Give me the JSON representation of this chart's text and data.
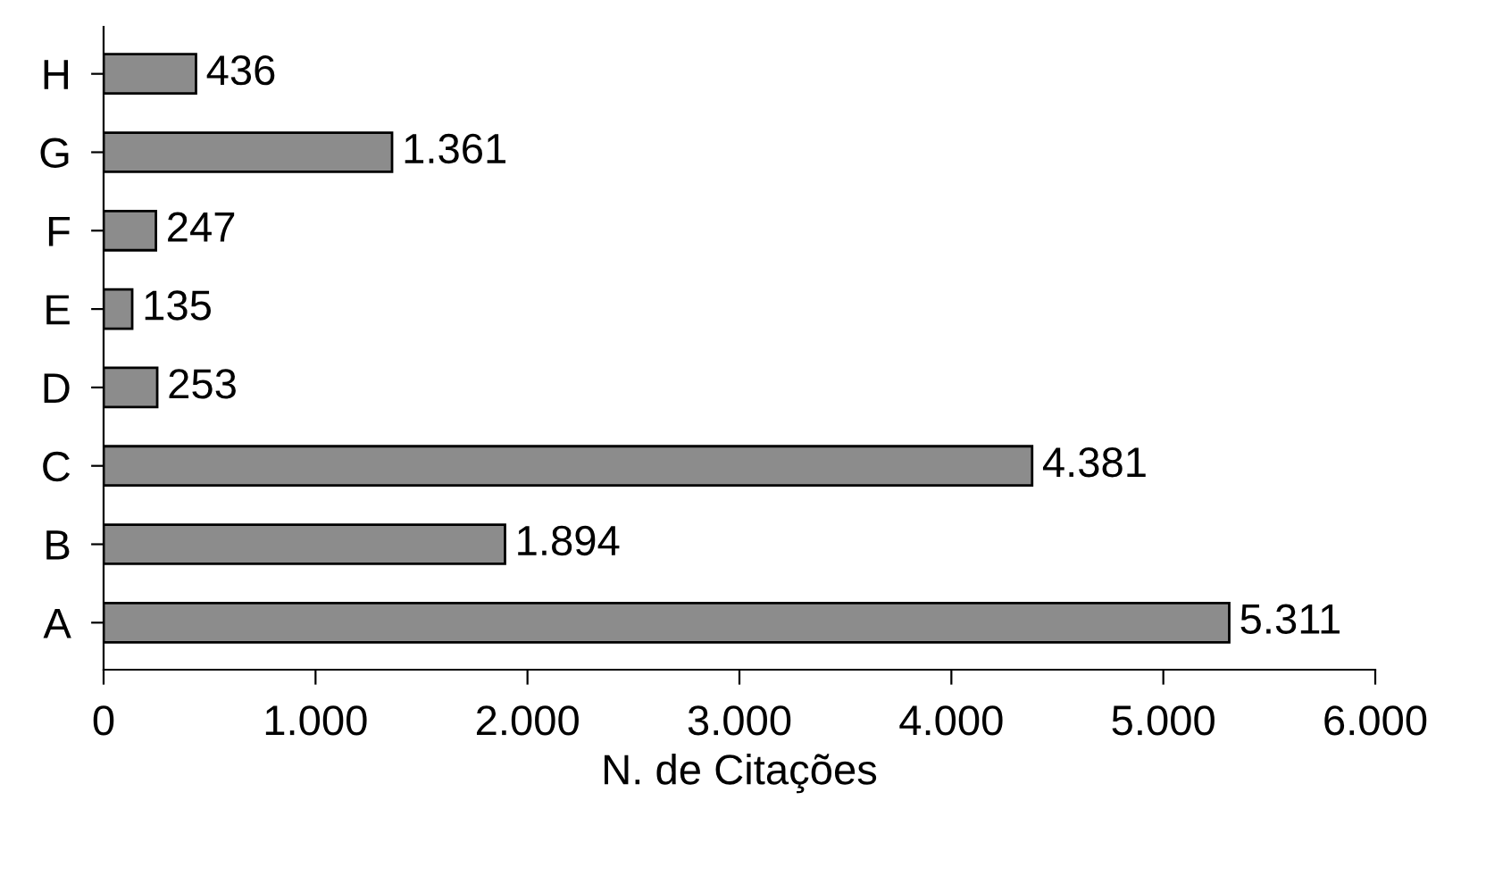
{
  "chart_data": {
    "type": "bar",
    "orientation": "horizontal",
    "xlabel": "N. de Citações",
    "categories": [
      "H",
      "G",
      "F",
      "E",
      "D",
      "C",
      "B",
      "A"
    ],
    "values": [
      436,
      1361,
      247,
      135,
      253,
      4381,
      1894,
      5311
    ],
    "value_labels": [
      "436",
      "1.361",
      "247",
      "135",
      "253",
      "4.381",
      "1.894",
      "5.311"
    ],
    "color": "#8c8c8c",
    "xlim": [
      0,
      6000
    ],
    "xticks": [
      0,
      {
        "value": 1000,
        "label": "1.000"
      },
      {
        "value": 2000,
        "label": "2.000"
      },
      {
        "value": 3000,
        "label": "3.000"
      },
      {
        "value": 4000,
        "label": "4.000"
      },
      {
        "value": 5000,
        "label": "5.000"
      },
      {
        "value": 6000,
        "label": "6.000"
      }
    ],
    "grid": false,
    "legend": false
  }
}
